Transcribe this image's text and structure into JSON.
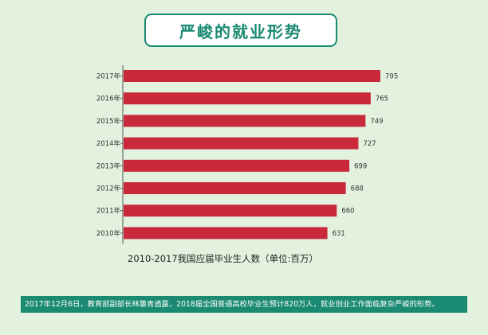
{
  "colors": {
    "background": "#e2f2de",
    "accent": "#1a8a72",
    "bar": "#c9293a"
  },
  "header": {
    "title": "严峻的就业形势"
  },
  "chart_data": {
    "type": "bar",
    "orientation": "horizontal",
    "title": "2010-2017我国应届毕业生人数（单位:百万）",
    "categories": [
      "2017年",
      "2016年",
      "2015年",
      "2014年",
      "2013年",
      "2012年",
      "2011年",
      "2010年"
    ],
    "values": [
      795,
      765,
      749,
      727,
      699,
      688,
      660,
      631
    ],
    "xlim": [
      0,
      800
    ],
    "grid": false,
    "xlabel": "",
    "ylabel": ""
  },
  "footer": {
    "text": "2017年12月6日，教育部副部长林蕙青透露，2018届全国普通高校毕业生预计820万人，就业创业工作面临复杂严峻的形势。"
  }
}
